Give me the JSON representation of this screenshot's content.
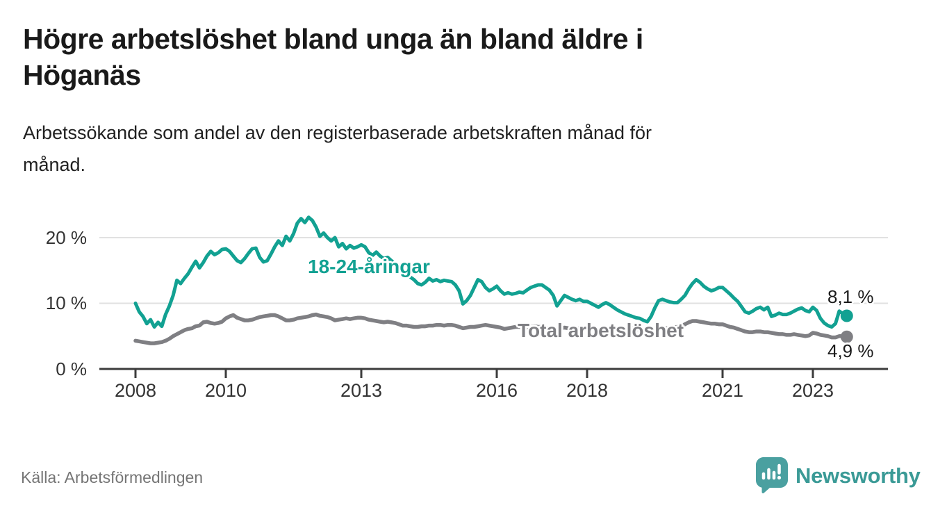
{
  "header": {
    "title_line1": "Högre arbetslöshet bland unga än bland äldre i",
    "title_line2": "Höganäs",
    "subtitle_line1": "Arbetssökande som andel av den registerbaserade arbetskraften månad för",
    "subtitle_line2": "månad."
  },
  "chart_data": {
    "type": "line",
    "title": "Högre arbetslöshet bland unga än bland äldre i Höganäs",
    "subtitle": "Arbetssökande som andel av den registerbaserade arbetskraften månad för månad.",
    "x_unit": "month",
    "x_start": "2008-01",
    "x_end": "2023-10",
    "ylim": [
      0,
      24
    ],
    "grid": "horizontal",
    "yticks": [
      {
        "value": 0,
        "label": "0 %"
      },
      {
        "value": 10,
        "label": "10 %"
      },
      {
        "value": 20,
        "label": "20 %"
      }
    ],
    "xticks": [
      {
        "year": 2008,
        "label": "2008"
      },
      {
        "year": 2010,
        "label": "2010"
      },
      {
        "year": 2013,
        "label": "2013"
      },
      {
        "year": 2016,
        "label": "2016"
      },
      {
        "year": 2018,
        "label": "2018"
      },
      {
        "year": 2021,
        "label": "2021"
      },
      {
        "year": 2023,
        "label": "2023"
      }
    ],
    "series": [
      {
        "name": "18-24-åringar",
        "color": "#12a192",
        "stroke_width": 5,
        "end_value": 8.1,
        "end_label": "8,1 %",
        "values": [
          10.0,
          8.7,
          8.0,
          6.9,
          7.5,
          6.4,
          7.1,
          6.5,
          8.3,
          9.6,
          11.2,
          13.5,
          13.0,
          13.8,
          14.5,
          15.5,
          16.4,
          15.4,
          16.2,
          17.2,
          17.9,
          17.4,
          17.7,
          18.2,
          18.3,
          17.9,
          17.2,
          16.5,
          16.2,
          16.8,
          17.6,
          18.3,
          18.4,
          17.0,
          16.3,
          16.5,
          17.5,
          18.6,
          19.5,
          18.8,
          20.2,
          19.5,
          20.6,
          22.2,
          22.9,
          22.3,
          23.1,
          22.6,
          21.6,
          20.2,
          20.7,
          20.0,
          19.5,
          20.0,
          18.6,
          19.1,
          18.3,
          18.8,
          18.4,
          18.6,
          18.9,
          18.6,
          17.7,
          17.3,
          17.8,
          17.2,
          16.8,
          17.0,
          16.5,
          16.0,
          15.4,
          14.8,
          14.4,
          14.0,
          13.6,
          13.0,
          12.8,
          13.2,
          13.8,
          13.4,
          13.6,
          13.3,
          13.5,
          13.4,
          13.3,
          12.8,
          11.9,
          9.9,
          10.4,
          11.2,
          12.4,
          13.6,
          13.3,
          12.4,
          11.9,
          12.2,
          12.6,
          11.9,
          11.4,
          11.6,
          11.4,
          11.5,
          11.7,
          11.6,
          12.0,
          12.4,
          12.6,
          12.8,
          12.8,
          12.4,
          12.0,
          11.2,
          9.6,
          10.4,
          11.2,
          10.9,
          10.6,
          10.4,
          10.6,
          10.3,
          10.3,
          10.0,
          9.7,
          9.4,
          9.8,
          10.1,
          9.8,
          9.4,
          9.0,
          8.7,
          8.4,
          8.2,
          8.0,
          7.8,
          7.7,
          7.4,
          7.2,
          8.0,
          9.3,
          10.4,
          10.6,
          10.4,
          10.2,
          10.1,
          10.1,
          10.6,
          11.2,
          12.2,
          13.0,
          13.6,
          13.2,
          12.6,
          12.2,
          11.9,
          12.1,
          12.4,
          12.4,
          11.9,
          11.4,
          10.8,
          10.3,
          9.5,
          8.7,
          8.5,
          8.8,
          9.2,
          9.4,
          9.0,
          9.4,
          8.0,
          8.2,
          8.5,
          8.3,
          8.3,
          8.5,
          8.8,
          9.1,
          9.3,
          8.9,
          8.7,
          9.4,
          8.9,
          7.7,
          7.0,
          6.6,
          6.4,
          6.9,
          8.8,
          8.4,
          8.1
        ]
      },
      {
        "name": "Total arbetslöshet",
        "color": "#7f7f83",
        "stroke_width": 5.5,
        "end_value": 4.9,
        "end_label": "4,9 %",
        "values": [
          4.3,
          4.2,
          4.1,
          4.0,
          3.9,
          3.9,
          4.0,
          4.1,
          4.3,
          4.6,
          5.0,
          5.3,
          5.6,
          5.9,
          6.1,
          6.2,
          6.5,
          6.6,
          7.1,
          7.2,
          7.0,
          6.9,
          7.0,
          7.2,
          7.7,
          8.0,
          8.2,
          7.8,
          7.6,
          7.4,
          7.4,
          7.5,
          7.7,
          7.9,
          8.0,
          8.1,
          8.2,
          8.2,
          8.0,
          7.7,
          7.4,
          7.4,
          7.5,
          7.7,
          7.8,
          7.9,
          8.0,
          8.2,
          8.3,
          8.1,
          8.0,
          7.9,
          7.7,
          7.4,
          7.5,
          7.6,
          7.7,
          7.6,
          7.7,
          7.8,
          7.8,
          7.7,
          7.5,
          7.4,
          7.3,
          7.2,
          7.1,
          7.2,
          7.1,
          7.0,
          6.8,
          6.6,
          6.6,
          6.5,
          6.4,
          6.4,
          6.5,
          6.5,
          6.6,
          6.6,
          6.7,
          6.7,
          6.6,
          6.7,
          6.7,
          6.6,
          6.4,
          6.2,
          6.3,
          6.4,
          6.4,
          6.5,
          6.6,
          6.7,
          6.6,
          6.5,
          6.4,
          6.3,
          6.1,
          6.2,
          6.3,
          6.4,
          6.4,
          6.3,
          6.3,
          6.4,
          6.5,
          6.4,
          6.4,
          6.3,
          6.2,
          6.1,
          6.1,
          6.2,
          6.3,
          6.2,
          6.1,
          6.1,
          6.2,
          6.2,
          6.2,
          6.1,
          6.0,
          5.9,
          5.9,
          6.0,
          6.1,
          6.1,
          6.0,
          6.0,
          6.1,
          6.2,
          6.2,
          6.1,
          6.0,
          5.9,
          5.9,
          6.0,
          6.2,
          6.3,
          6.3,
          6.2,
          6.2,
          6.3,
          6.4,
          6.5,
          6.8,
          7.1,
          7.3,
          7.3,
          7.2,
          7.1,
          7.0,
          6.9,
          6.9,
          6.8,
          6.8,
          6.6,
          6.4,
          6.3,
          6.1,
          5.9,
          5.7,
          5.6,
          5.6,
          5.7,
          5.7,
          5.6,
          5.6,
          5.5,
          5.4,
          5.3,
          5.3,
          5.2,
          5.2,
          5.3,
          5.2,
          5.1,
          5.0,
          5.1,
          5.5,
          5.4,
          5.2,
          5.1,
          5.0,
          4.8,
          4.8,
          5.0,
          5.0,
          4.9
        ]
      }
    ],
    "colors": {
      "youth_line": "#12a192",
      "total_line": "#7f7f83",
      "axis": "#3c3c3c",
      "gridline": "#e1e1e1",
      "tick_text": "#333333"
    }
  },
  "footer": {
    "source": "Källa: Arbetsförmedlingen",
    "brand": "Newsworthy",
    "brand_color": "#3a9a96",
    "brand_mark_color": "#4aa0a0"
  }
}
